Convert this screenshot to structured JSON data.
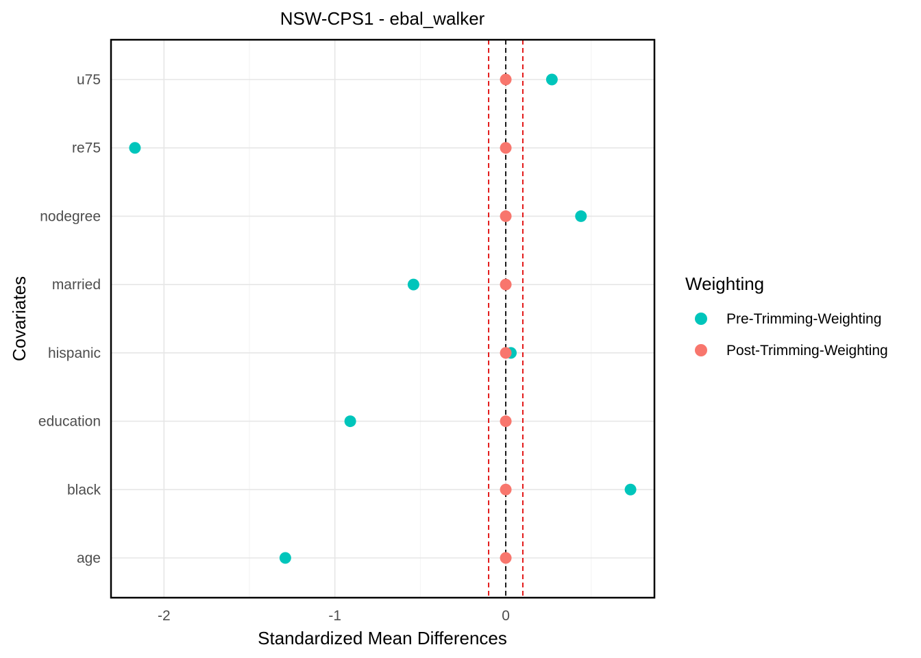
{
  "chart_data": {
    "type": "scatter",
    "title": "NSW-CPS1 - ebal_walker",
    "xlabel": "Standardized Mean Differences",
    "ylabel": "Covariates",
    "categories": [
      "age",
      "black",
      "education",
      "hispanic",
      "married",
      "nodegree",
      "re75",
      "u75"
    ],
    "xlim": [
      -2.31,
      0.87
    ],
    "x_ticks": [
      -2,
      -1,
      0
    ],
    "x_tick_labels": [
      "-2",
      "-1",
      "0"
    ],
    "grid": true,
    "legend": {
      "title": "Weighting",
      "position": "right"
    },
    "series": [
      {
        "name": "Pre-Trimming-Weighting",
        "color": "#00C5BB",
        "values": [
          -1.29,
          0.73,
          -0.91,
          0.03,
          -0.54,
          0.44,
          -2.17,
          0.27
        ]
      },
      {
        "name": "Post-Trimming-Weighting",
        "color": "#F8766D",
        "values": [
          0,
          0,
          0,
          0,
          0,
          0,
          0,
          0
        ]
      }
    ],
    "reference_lines": [
      {
        "x": 0,
        "color": "#000000",
        "style": "dashed"
      },
      {
        "x": -0.1,
        "color": "#E00000",
        "style": "dashed"
      },
      {
        "x": 0.1,
        "color": "#E00000",
        "style": "dashed"
      }
    ]
  }
}
